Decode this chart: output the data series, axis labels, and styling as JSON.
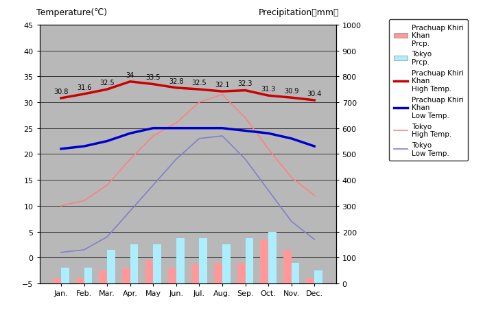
{
  "months": [
    "Jan.",
    "Feb.",
    "Mar.",
    "Apr.",
    "May",
    "Jun.",
    "Jul.",
    "Aug.",
    "Sep.",
    "Oct.",
    "Nov.",
    "Dec."
  ],
  "prachuap_high_temp": [
    30.8,
    31.6,
    32.5,
    34.0,
    33.5,
    32.8,
    32.5,
    32.1,
    32.3,
    31.3,
    30.9,
    30.4
  ],
  "prachuap_low_temp": [
    21.0,
    21.5,
    22.5,
    24.0,
    25.0,
    25.0,
    25.0,
    25.0,
    24.5,
    24.0,
    23.0,
    21.5
  ],
  "tokyo_high_temp": [
    10.0,
    11.0,
    14.0,
    19.0,
    23.5,
    26.0,
    30.0,
    31.5,
    27.0,
    21.0,
    15.5,
    12.0
  ],
  "tokyo_low_temp": [
    1.0,
    1.5,
    4.0,
    9.0,
    14.0,
    19.0,
    23.0,
    23.5,
    19.0,
    13.0,
    7.0,
    3.5
  ],
  "prachuap_precip": [
    20,
    20,
    50,
    60,
    90,
    60,
    75,
    80,
    80,
    170,
    130,
    20
  ],
  "tokyo_precip": [
    60,
    60,
    130,
    150,
    150,
    175,
    175,
    150,
    175,
    200,
    80,
    50
  ],
  "prachuap_high_labels": [
    "30.8",
    "31.6",
    "32.5",
    "34",
    "33.5",
    "32.8",
    "32.5",
    "32.1",
    "32.3",
    "31.3",
    "30.9",
    "30.4"
  ],
  "title_left": "Temperature(℃)",
  "title_right": "Precipitation（mm）",
  "plot_bg_color": "#b8b8b8",
  "prachuap_high_color": "#cc0000",
  "prachuap_low_color": "#0000cc",
  "tokyo_high_color": "#ff8080",
  "tokyo_low_color": "#8080cc",
  "prachuap_precip_color": "#ff9999",
  "tokyo_precip_color": "#aaeeff",
  "ylim_temp": [
    -5,
    45
  ],
  "ylim_precip": [
    0,
    1000
  ],
  "yticks_temp": [
    -5,
    0,
    5,
    10,
    15,
    20,
    25,
    30,
    35,
    40,
    45
  ],
  "yticks_precip": [
    0,
    100,
    200,
    300,
    400,
    500,
    600,
    700,
    800,
    900,
    1000
  ]
}
